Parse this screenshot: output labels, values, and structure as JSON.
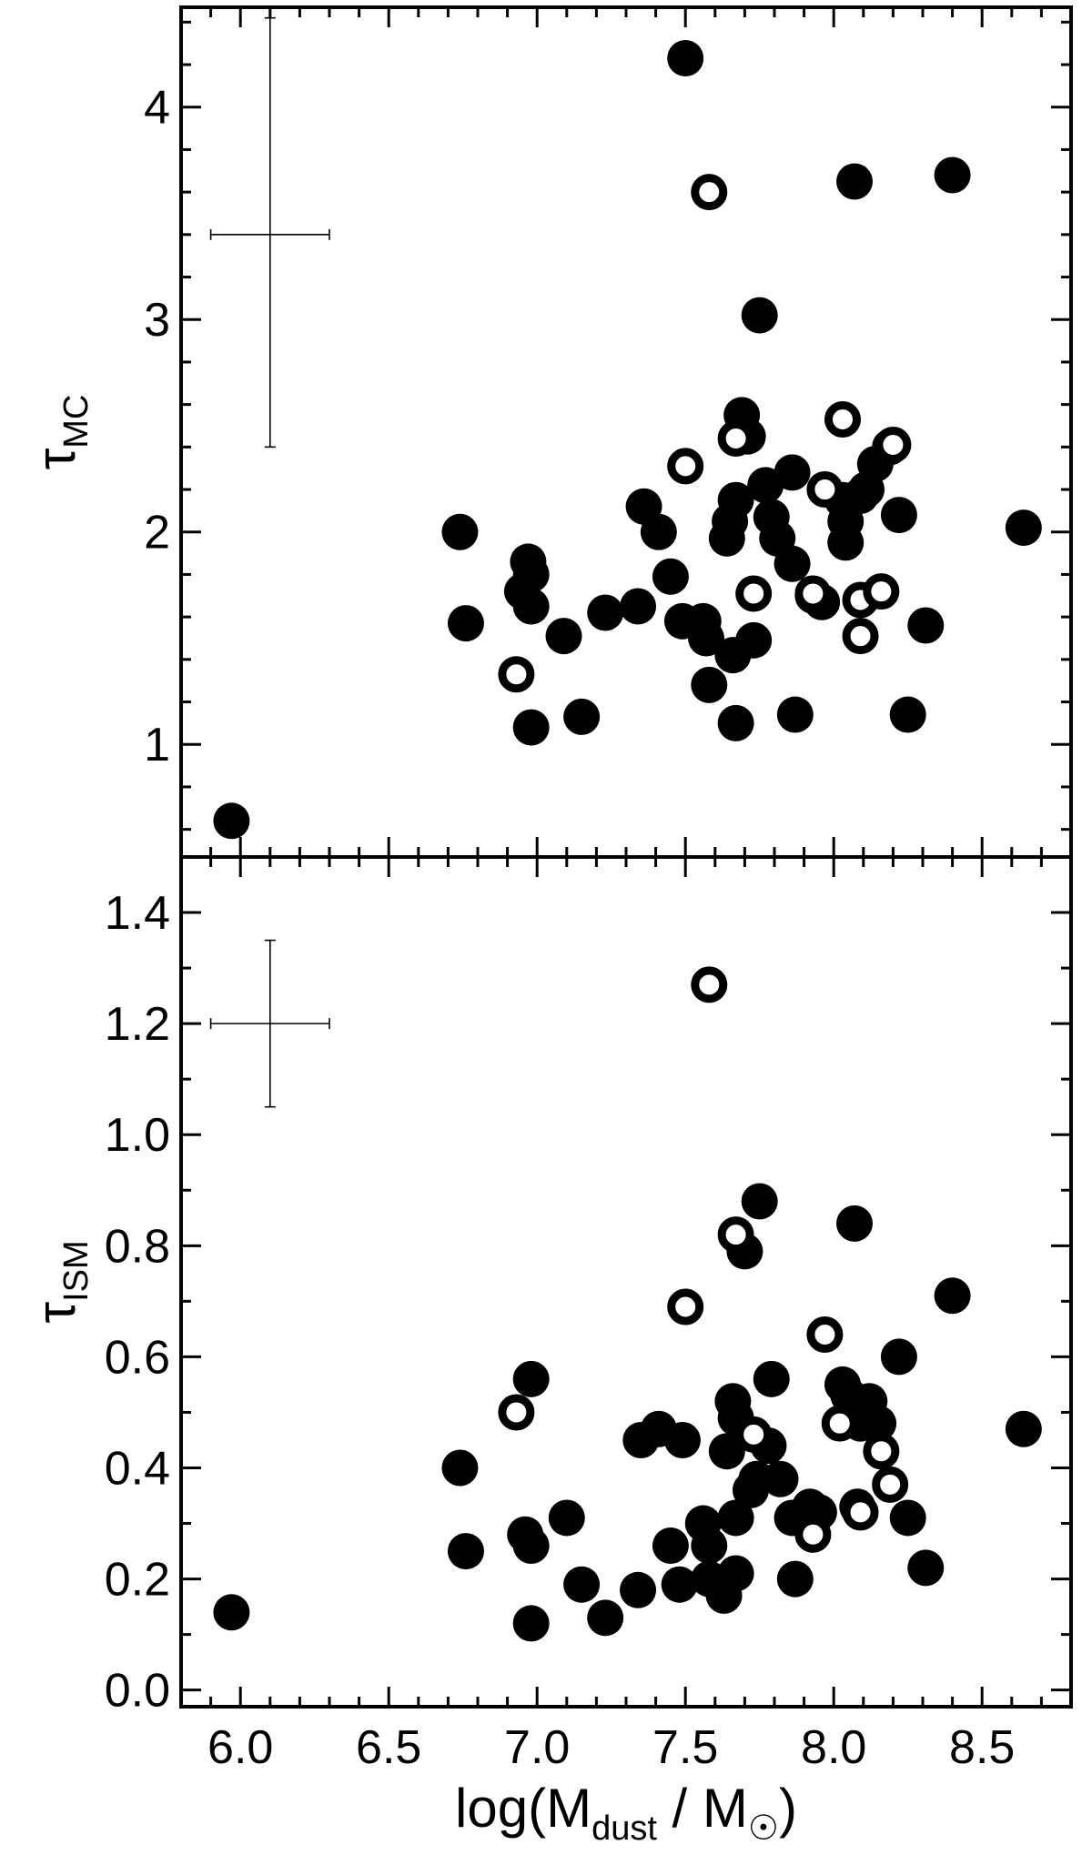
{
  "chart_data": [
    {
      "type": "scatter",
      "panel": "top",
      "ylabel_main": "τ",
      "ylabel_sub": "MC",
      "xlim": [
        5.8,
        8.8
      ],
      "ylim": [
        0.47,
        4.47
      ],
      "yticks": [
        "1",
        "2",
        "3",
        "4"
      ],
      "yticks_values": [
        1,
        2,
        3,
        4
      ],
      "error_bar": {
        "x": 6.1,
        "y": 3.4,
        "xerr": 0.2,
        "yerr_low": 1.0,
        "yerr_high": 1.02
      },
      "series": [
        {
          "marker": "filled",
          "points": [
            [
              5.97,
              0.64
            ],
            [
              6.74,
              2.0
            ],
            [
              6.76,
              1.57
            ],
            [
              6.97,
              1.86
            ],
            [
              6.98,
              1.8
            ],
            [
              6.95,
              1.72
            ],
            [
              6.98,
              1.65
            ],
            [
              6.98,
              1.08
            ],
            [
              7.09,
              1.51
            ],
            [
              7.15,
              1.13
            ],
            [
              7.23,
              1.62
            ],
            [
              7.34,
              1.65
            ],
            [
              7.36,
              2.12
            ],
            [
              7.41,
              2.0
            ],
            [
              7.45,
              1.79
            ],
            [
              7.49,
              1.58
            ],
            [
              7.5,
              4.23
            ],
            [
              7.56,
              1.58
            ],
            [
              7.57,
              1.5
            ],
            [
              7.58,
              1.28
            ],
            [
              7.64,
              1.97
            ],
            [
              7.65,
              2.05
            ],
            [
              7.66,
              1.42
            ],
            [
              7.67,
              2.15
            ],
            [
              7.67,
              1.1
            ],
            [
              7.69,
              2.55
            ],
            [
              7.71,
              2.45
            ],
            [
              7.73,
              1.49
            ],
            [
              7.75,
              3.02
            ],
            [
              7.77,
              2.22
            ],
            [
              7.79,
              2.07
            ],
            [
              7.81,
              1.97
            ],
            [
              7.86,
              2.28
            ],
            [
              7.86,
              1.85
            ],
            [
              7.87,
              1.14
            ],
            [
              7.93,
              1.7
            ],
            [
              7.96,
              1.67
            ],
            [
              8.03,
              2.15
            ],
            [
              8.04,
              2.05
            ],
            [
              8.04,
              1.95
            ],
            [
              8.07,
              3.65
            ],
            [
              8.09,
              2.17
            ],
            [
              8.11,
              2.2
            ],
            [
              8.14,
              2.32
            ],
            [
              8.19,
              2.4
            ],
            [
              8.22,
              2.08
            ],
            [
              8.25,
              1.14
            ],
            [
              8.31,
              1.56
            ],
            [
              8.4,
              3.68
            ],
            [
              8.64,
              2.02
            ]
          ]
        },
        {
          "marker": "open",
          "points": [
            [
              6.93,
              1.33
            ],
            [
              7.5,
              2.31
            ],
            [
              7.58,
              3.6
            ],
            [
              7.67,
              2.44
            ],
            [
              7.73,
              1.71
            ],
            [
              7.93,
              1.71
            ],
            [
              7.97,
              2.2
            ],
            [
              8.03,
              2.53
            ],
            [
              8.09,
              1.68
            ],
            [
              8.09,
              1.51
            ],
            [
              8.16,
              1.72
            ],
            [
              8.2,
              2.41
            ]
          ]
        }
      ]
    },
    {
      "type": "scatter",
      "panel": "bottom",
      "ylabel_main": "τ",
      "ylabel_sub": "ISM",
      "xlabel_main": "log(M",
      "xlabel_sub": "dust",
      "xlabel_mid": " / M",
      "xlabel_end": ")",
      "xlim": [
        5.8,
        8.8
      ],
      "ylim": [
        -0.03,
        1.5
      ],
      "xticks": [
        "6.0",
        "6.5",
        "7.0",
        "7.5",
        "8.0",
        "8.5"
      ],
      "xticks_values": [
        6.0,
        6.5,
        7.0,
        7.5,
        8.0,
        8.5
      ],
      "yticks": [
        "0.0",
        "0.2",
        "0.4",
        "0.6",
        "0.8",
        "1.0",
        "1.2",
        "1.4"
      ],
      "yticks_values": [
        0.0,
        0.2,
        0.4,
        0.6,
        0.8,
        1.0,
        1.2,
        1.4
      ],
      "error_bar": {
        "x": 6.1,
        "y": 1.2,
        "xerr": 0.2,
        "yerr_low": 0.15,
        "yerr_high": 0.15
      },
      "series": [
        {
          "marker": "filled",
          "points": [
            [
              5.97,
              0.14
            ],
            [
              6.74,
              0.4
            ],
            [
              6.76,
              0.25
            ],
            [
              6.96,
              0.28
            ],
            [
              6.98,
              0.56
            ],
            [
              6.98,
              0.26
            ],
            [
              6.98,
              0.12
            ],
            [
              7.1,
              0.31
            ],
            [
              7.15,
              0.19
            ],
            [
              7.23,
              0.13
            ],
            [
              7.34,
              0.18
            ],
            [
              7.35,
              0.45
            ],
            [
              7.41,
              0.47
            ],
            [
              7.45,
              0.26
            ],
            [
              7.48,
              0.19
            ],
            [
              7.49,
              0.45
            ],
            [
              7.56,
              0.3
            ],
            [
              7.58,
              0.26
            ],
            [
              7.58,
              0.2
            ],
            [
              7.63,
              0.17
            ],
            [
              7.64,
              0.43
            ],
            [
              7.66,
              0.52
            ],
            [
              7.67,
              0.49
            ],
            [
              7.67,
              0.31
            ],
            [
              7.67,
              0.21
            ],
            [
              7.7,
              0.79
            ],
            [
              7.72,
              0.36
            ],
            [
              7.74,
              0.38
            ],
            [
              7.75,
              0.88
            ],
            [
              7.78,
              0.44
            ],
            [
              7.79,
              0.56
            ],
            [
              7.82,
              0.38
            ],
            [
              7.86,
              0.31
            ],
            [
              7.87,
              0.2
            ],
            [
              7.92,
              0.33
            ],
            [
              7.95,
              0.32
            ],
            [
              8.03,
              0.55
            ],
            [
              8.05,
              0.53
            ],
            [
              8.07,
              0.84
            ],
            [
              8.08,
              0.33
            ],
            [
              8.09,
              0.48
            ],
            [
              8.12,
              0.52
            ],
            [
              8.15,
              0.48
            ],
            [
              8.22,
              0.6
            ],
            [
              8.25,
              0.31
            ],
            [
              8.31,
              0.22
            ],
            [
              8.4,
              0.71
            ],
            [
              8.64,
              0.47
            ]
          ]
        },
        {
          "marker": "open",
          "points": [
            [
              6.93,
              0.5
            ],
            [
              7.5,
              0.69
            ],
            [
              7.58,
              1.27
            ],
            [
              7.67,
              0.82
            ],
            [
              7.73,
              0.46
            ],
            [
              7.93,
              0.28
            ],
            [
              7.97,
              0.64
            ],
            [
              8.02,
              0.48
            ],
            [
              8.09,
              0.32
            ],
            [
              8.16,
              0.43
            ],
            [
              8.19,
              0.37
            ]
          ]
        }
      ]
    }
  ]
}
